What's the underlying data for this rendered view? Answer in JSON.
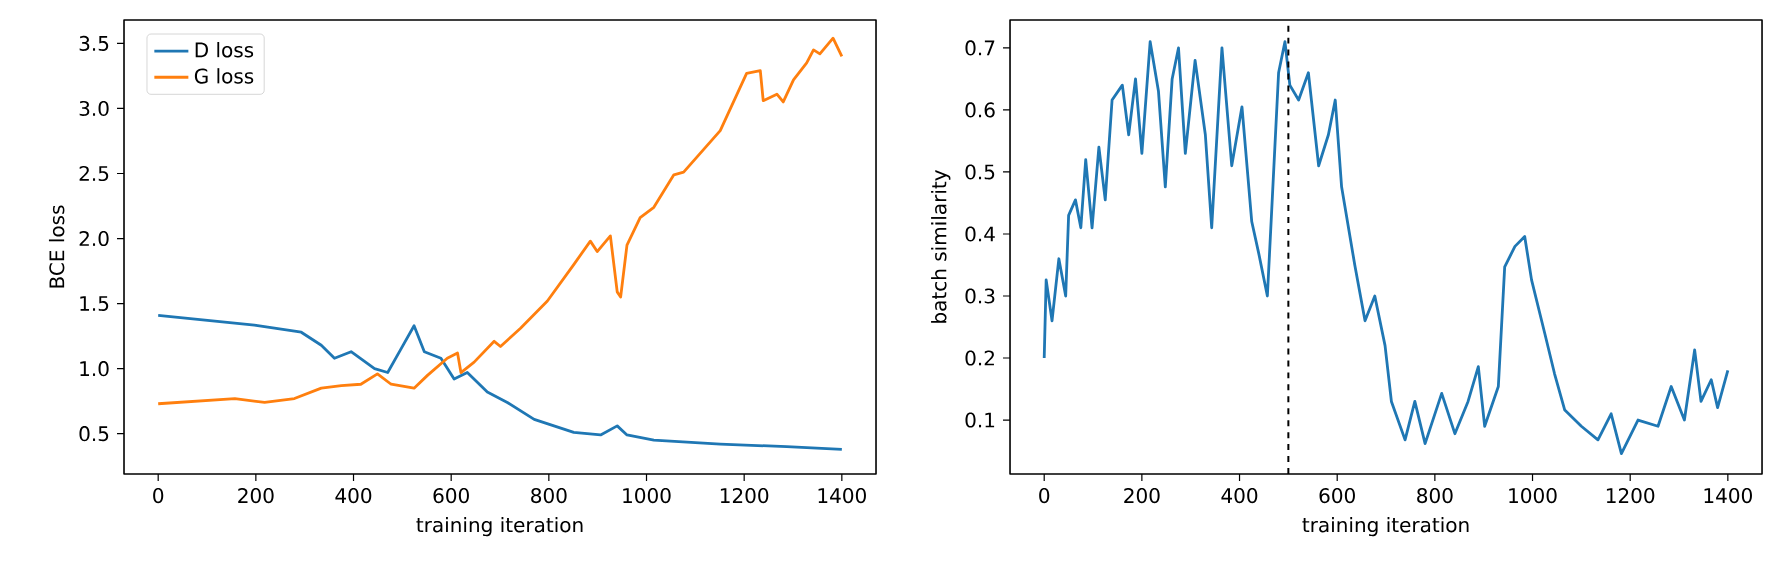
{
  "chart_data": [
    {
      "type": "line",
      "xlabel": "training iteration",
      "ylabel": "BCE loss",
      "legend": "top left",
      "grid": false,
      "xlim": [
        -70,
        1470
      ],
      "ylim": [
        0.19,
        3.68
      ],
      "xticks": [
        0,
        200,
        400,
        600,
        800,
        1000,
        1200,
        1400
      ],
      "yticks": [
        0.5,
        {
          "value": 1,
          "label": "1.0"
        },
        1.5,
        {
          "value": 2,
          "label": "2.0"
        },
        2.5,
        {
          "value": 3,
          "label": "3.0"
        },
        3.5
      ],
      "series": [
        {
          "name": "D loss",
          "color": "#1f77b4",
          "x": [
            0,
            197,
            293,
            334,
            361,
            395,
            443,
            470,
            497,
            524,
            545,
            579,
            606,
            633,
            674,
            715,
            770,
            851,
            906,
            940,
            960,
            1015,
            1151,
            1287,
            1400
          ],
          "values": [
            1.41,
            1.335,
            1.28,
            1.18,
            1.08,
            1.13,
            1.0,
            0.97,
            1.15,
            1.33,
            1.13,
            1.08,
            0.92,
            0.97,
            0.82,
            0.74,
            0.61,
            0.51,
            0.49,
            0.56,
            0.49,
            0.45,
            0.42,
            0.4,
            0.38
          ]
        },
        {
          "name": "G loss",
          "color": "#ff7f0e",
          "x": [
            0,
            157,
            218,
            279,
            334,
            375,
            415,
            449,
            477,
            524,
            552,
            592,
            613,
            620,
            647,
            688,
            701,
            742,
            797,
            851,
            885,
            899,
            926,
            940,
            947,
            960,
            987,
            1015,
            1056,
            1076,
            1151,
            1205,
            1233,
            1239,
            1267,
            1280,
            1301,
            1328,
            1342,
            1355,
            1382,
            1400
          ],
          "values": [
            0.73,
            0.77,
            0.74,
            0.77,
            0.85,
            0.87,
            0.88,
            0.96,
            0.88,
            0.85,
            0.95,
            1.08,
            1.12,
            0.97,
            1.05,
            1.21,
            1.17,
            1.31,
            1.52,
            1.8,
            1.98,
            1.9,
            2.02,
            1.59,
            1.55,
            1.95,
            2.16,
            2.24,
            2.49,
            2.51,
            2.83,
            3.27,
            3.29,
            3.06,
            3.11,
            3.05,
            3.22,
            3.35,
            3.45,
            3.42,
            3.54,
            3.4
          ]
        }
      ]
    },
    {
      "type": "line",
      "xlabel": "training iteration",
      "ylabel": "batch similarity",
      "grid": false,
      "xlim": [
        -70,
        1470
      ],
      "ylim": [
        0.013,
        0.745
      ],
      "xticks": [
        0,
        200,
        400,
        600,
        800,
        1000,
        1200,
        1400
      ],
      "yticks": [
        0.1,
        0.2,
        0.3,
        0.4,
        0.5,
        0.6,
        0.7
      ],
      "series": [
        {
          "color": "#1f77b4",
          "x": [
            0,
            4,
            16,
            30,
            44,
            50,
            64,
            75,
            85,
            98,
            112,
            125,
            139,
            160,
            173,
            187,
            200,
            217,
            234,
            248,
            262,
            275,
            289,
            309,
            330,
            343,
            364,
            384,
            405,
            425,
            439,
            457,
            466,
            480,
            493,
            503,
            521,
            541,
            562,
            582,
            596,
            609,
            636,
            657,
            677,
            698,
            711,
            739,
            759,
            780,
            814,
            841,
            868,
            889,
            902,
            930,
            943,
            964,
            984,
            998,
            1025,
            1045,
            1066,
            1100,
            1134,
            1161,
            1182,
            1216,
            1257,
            1284,
            1311,
            1332,
            1345,
            1366,
            1379,
            1400
          ],
          "values": [
            0.2,
            0.326,
            0.26,
            0.36,
            0.3,
            0.43,
            0.455,
            0.41,
            0.52,
            0.41,
            0.54,
            0.455,
            0.616,
            0.64,
            0.56,
            0.65,
            0.53,
            0.71,
            0.63,
            0.476,
            0.65,
            0.7,
            0.53,
            0.68,
            0.56,
            0.41,
            0.7,
            0.51,
            0.605,
            0.42,
            0.37,
            0.3,
            0.44,
            0.66,
            0.71,
            0.64,
            0.616,
            0.66,
            0.51,
            0.56,
            0.616,
            0.476,
            0.35,
            0.26,
            0.3,
            0.22,
            0.13,
            0.068,
            0.13,
            0.062,
            0.143,
            0.078,
            0.13,
            0.186,
            0.09,
            0.154,
            0.347,
            0.38,
            0.396,
            0.326,
            0.24,
            0.175,
            0.116,
            0.09,
            0.068,
            0.11,
            0.046,
            0.1,
            0.09,
            0.154,
            0.1,
            0.213,
            0.13,
            0.165,
            0.12,
            0.18
          ]
        }
      ],
      "ref_lines": [
        {
          "axis": "x",
          "value": 500,
          "color": "#000000",
          "line_style": "dashed"
        }
      ]
    }
  ]
}
